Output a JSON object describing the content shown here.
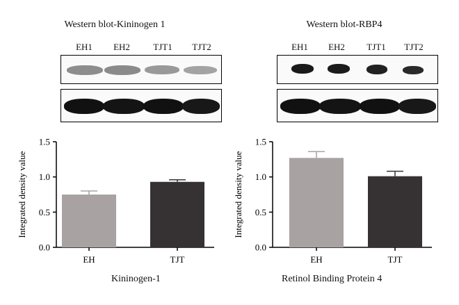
{
  "panels": [
    {
      "blot_title": "Western blot-Kininogen 1",
      "lanes": [
        "EH1",
        "EH2",
        "TJT1",
        "TJT2"
      ],
      "protein_label": "Kininogen-1"
    },
    {
      "blot_title": "Western blot-RBP4",
      "lanes": [
        "EH1",
        "EH2",
        "TJT1",
        "TJT2"
      ],
      "protein_label": "Retinol Binding Protein 4"
    }
  ],
  "chart_data": [
    {
      "type": "bar",
      "categories": [
        "EH",
        "TJT"
      ],
      "values": [
        0.75,
        0.93
      ],
      "errors": [
        0.05,
        0.03
      ],
      "colors": [
        "#a8a2a3",
        "#363233"
      ],
      "xlabel": "Kininogen-1",
      "ylabel": "Integrated density value",
      "ylim": [
        0,
        1.5
      ],
      "yticks": [
        "0.0",
        "0.5",
        "1.0",
        "1.5"
      ]
    },
    {
      "type": "bar",
      "categories": [
        "EH",
        "TJT"
      ],
      "values": [
        1.27,
        1.01
      ],
      "errors": [
        0.09,
        0.07
      ],
      "colors": [
        "#a8a2a3",
        "#363233"
      ],
      "xlabel": "Retinol Binding Protein 4",
      "ylabel": "Integrated density value",
      "ylim": [
        0,
        1.5
      ],
      "yticks": [
        "0.0",
        "0.5",
        "1.0",
        "1.5"
      ]
    }
  ]
}
